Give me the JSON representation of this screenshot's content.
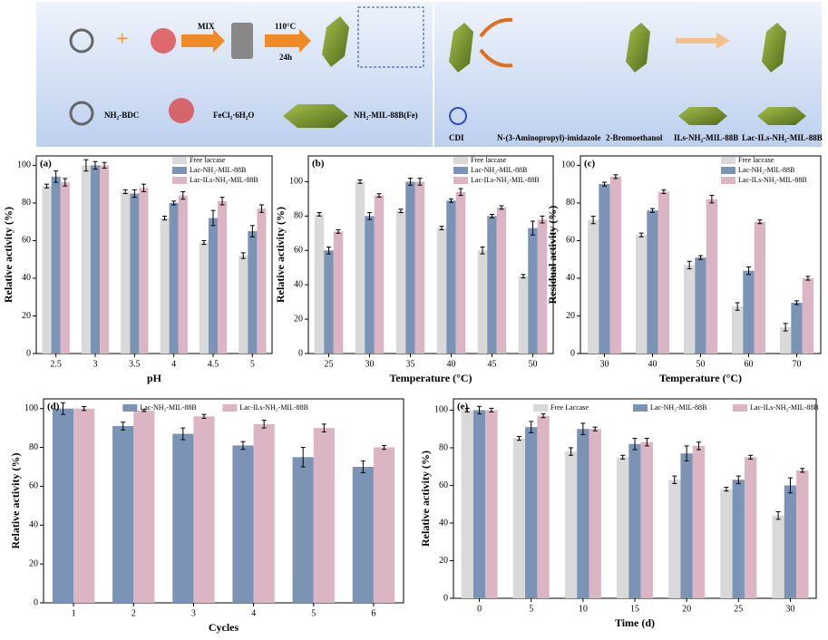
{
  "scheme": {
    "mix": "MIX",
    "temperature": "110°C",
    "time": "24h",
    "nh2_bdc": "NH₂-BDC",
    "fecl3": "FeCl₃·6H₂O",
    "mil88b": "NH₂-MIL-88B(Fe)",
    "cdi": "CDI",
    "aminopropyl_imidazole": "N-(3-Aminopropyl)-imidazole",
    "bromoethanol": "2-Bromoethanol",
    "ils_mil88b": "ILs-NH₂-MIL-88B",
    "lac_ils_mil88b": "Lac-ILs-NH₂-MIL-88B"
  },
  "chart_data": [
    {
      "type": "bar",
      "panel_label": "(a)",
      "xlabel": "pH",
      "ylabel": "Relative activity (%)",
      "legend": "upper right",
      "categories": [
        "2.5",
        "3",
        "3.5",
        "4",
        "4.5",
        "5"
      ],
      "ylim": [
        0,
        105
      ],
      "yticks": [
        0,
        20,
        40,
        60,
        80,
        100
      ],
      "series": [
        {
          "name": "Free laccase",
          "color": "#d9d9d9",
          "values": [
            89,
            100,
            86,
            72,
            59,
            52
          ],
          "errors": [
            1,
            3,
            1,
            1,
            1,
            1.5
          ]
        },
        {
          "name": "Lac-NH₂-MIL-88B",
          "color": "#7b93b5",
          "values": [
            94,
            100,
            85,
            80,
            72,
            65
          ],
          "errors": [
            3,
            2,
            2,
            1,
            4,
            3
          ]
        },
        {
          "name": "Lac-ILs-NH₂-MIL-88B",
          "color": "#dbb5c4",
          "values": [
            91,
            100,
            88,
            84,
            81,
            77
          ],
          "errors": [
            2,
            1.5,
            2,
            2,
            2,
            2
          ]
        }
      ]
    },
    {
      "type": "bar",
      "panel_label": "(b)",
      "xlabel": "Temperature (°C)",
      "ylabel": "Relative activity (%)",
      "legend": "upper right",
      "categories": [
        "25",
        "30",
        "35",
        "40",
        "45",
        "50"
      ],
      "ylim": [
        0,
        115
      ],
      "yticks": [
        0,
        20,
        40,
        60,
        80,
        100
      ],
      "series": [
        {
          "name": "Free laccase",
          "color": "#d9d9d9",
          "values": [
            81,
            100,
            83,
            73,
            60,
            45
          ],
          "errors": [
            1,
            1,
            1,
            1,
            2,
            1
          ]
        },
        {
          "name": "Lac-NH₂-MIL-88B",
          "color": "#7b93b5",
          "values": [
            60,
            80,
            100,
            89,
            80,
            73
          ],
          "errors": [
            2,
            2,
            2,
            1,
            1,
            4
          ]
        },
        {
          "name": "Lac-ILs-NH₂-MIL-88B",
          "color": "#dbb5c4",
          "values": [
            71,
            92,
            100,
            94,
            85,
            78
          ],
          "errors": [
            1,
            1,
            2,
            2,
            1,
            2
          ]
        }
      ]
    },
    {
      "type": "bar",
      "panel_label": "(c)",
      "xlabel": "Temperature (°C)",
      "ylabel": "Residual activity (%)",
      "legend": "upper right",
      "categories": [
        "30",
        "40",
        "50",
        "60",
        "70"
      ],
      "ylim": [
        0,
        105
      ],
      "yticks": [
        0,
        20,
        40,
        60,
        80,
        100
      ],
      "series": [
        {
          "name": "Free laccase",
          "color": "#d9d9d9",
          "values": [
            71,
            63,
            47,
            25,
            14
          ],
          "errors": [
            2,
            1,
            2,
            2,
            2
          ]
        },
        {
          "name": "Lac-NH₂-MIL-88B",
          "color": "#7b93b5",
          "values": [
            90,
            76,
            51,
            44,
            27
          ],
          "errors": [
            1,
            1,
            1,
            2,
            1
          ]
        },
        {
          "name": "Lac-ILs-NH₂-MIL-88B",
          "color": "#dbb5c4",
          "values": [
            94,
            86,
            82,
            70,
            40
          ],
          "errors": [
            1,
            1,
            2,
            1,
            1
          ]
        }
      ]
    },
    {
      "type": "bar",
      "panel_label": "(d)",
      "xlabel": "Cycles",
      "ylabel": "Relative activity (%)",
      "legend": "top",
      "categories": [
        "1",
        "2",
        "3",
        "4",
        "5",
        "6"
      ],
      "ylim": [
        0,
        105
      ],
      "yticks": [
        0,
        20,
        40,
        60,
        80,
        100
      ],
      "series": [
        {
          "name": "Lac-NH₂-MIL-88B",
          "color": "#7b93b5",
          "values": [
            100,
            91,
            87,
            81,
            75,
            70
          ],
          "errors": [
            3,
            2,
            3,
            2,
            5,
            3
          ]
        },
        {
          "name": "Lac-ILs-NH₂-MIL-88B",
          "color": "#dbb5c4",
          "values": [
            100,
            99,
            96,
            92,
            90,
            80
          ],
          "errors": [
            1,
            0.5,
            1,
            2,
            2,
            1
          ]
        }
      ]
    },
    {
      "type": "bar",
      "panel_label": "(e)",
      "xlabel": "Time (d)",
      "ylabel": "Relative activity (%)",
      "legend": "top",
      "categories": [
        "0",
        "5",
        "10",
        "15",
        "20",
        "25",
        "30"
      ],
      "ylim": [
        0,
        106
      ],
      "yticks": [
        0,
        20,
        40,
        60,
        80,
        100
      ],
      "series": [
        {
          "name": "Free Laccase",
          "color": "#d9d9d9",
          "values": [
            100,
            85,
            78,
            75,
            63,
            58,
            44
          ],
          "errors": [
            1,
            1,
            2,
            1,
            2,
            1,
            2
          ]
        },
        {
          "name": "Lac-NH₂-MIL-88B",
          "color": "#7b93b5",
          "values": [
            100,
            91,
            90,
            82,
            77,
            63,
            60
          ],
          "errors": [
            2,
            3,
            3,
            3,
            4,
            2,
            4
          ]
        },
        {
          "name": "Lac-ILs-NH₂-MIL-88B",
          "color": "#dbb5c4",
          "values": [
            100,
            97,
            90,
            83,
            81,
            75,
            68
          ],
          "errors": [
            1,
            1,
            1,
            2,
            2,
            1,
            1
          ]
        }
      ]
    }
  ]
}
